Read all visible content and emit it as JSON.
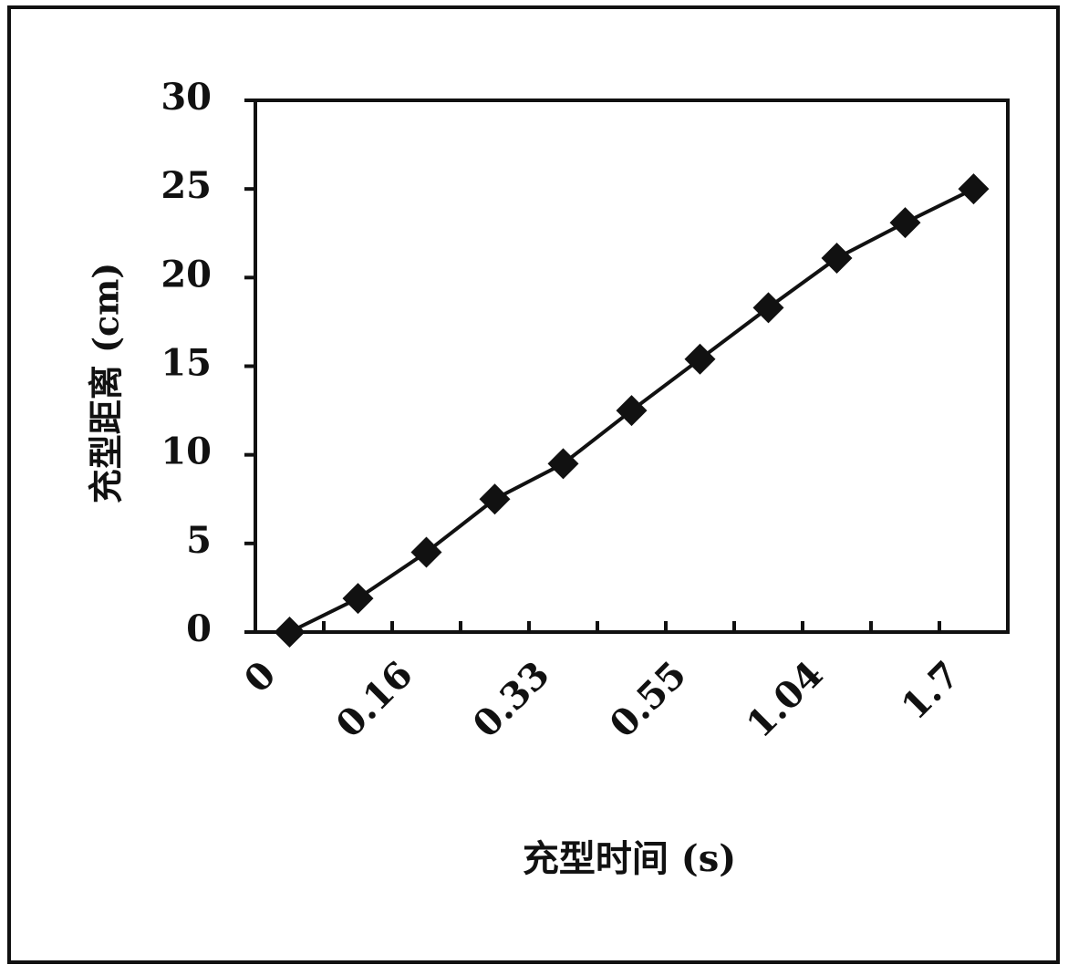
{
  "chart_data": {
    "type": "line",
    "x_label": "充型时间 (s)",
    "y_label": "充型距离 (cm)",
    "categories": [
      "0",
      null,
      "0.16",
      null,
      "0.33",
      null,
      "0.55",
      null,
      "1.04",
      null,
      "1.7"
    ],
    "series": [
      {
        "color": "#111111",
        "values": [
          0,
          1.9,
          4.5,
          7.5,
          9.5,
          12.5,
          15.4,
          18.3,
          21.1,
          23.1,
          25.0
        ]
      }
    ],
    "ylim": [
      0,
      30
    ],
    "yticks": [
      0,
      5,
      10,
      15,
      20,
      25,
      30
    ],
    "marker": "diamond"
  }
}
